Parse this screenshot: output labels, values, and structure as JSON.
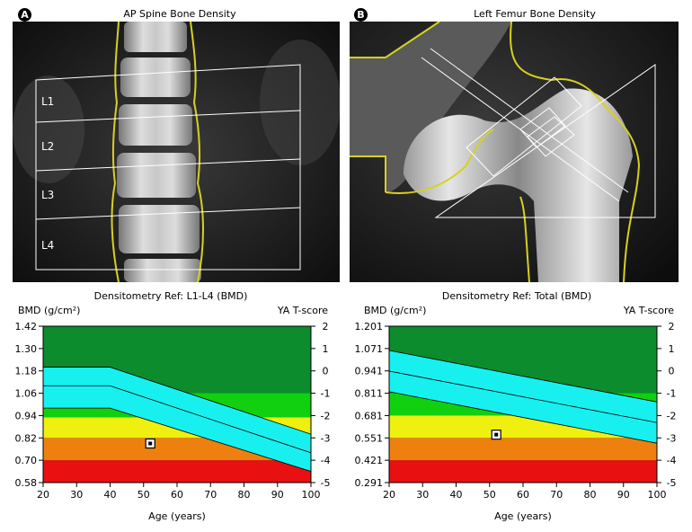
{
  "panels": [
    {
      "label": "A",
      "image_title": "AP Spine Bone Density",
      "vertebra_labels": [
        "L1",
        "L2",
        "L3",
        "L4"
      ]
    },
    {
      "label": "B",
      "image_title": "Left Femur Bone Density"
    }
  ],
  "chart_data": [
    {
      "type": "area",
      "title": "Densitometry Ref: L1-L4 (BMD)",
      "ylabel": "BMD (g/cm²)",
      "y2label": "YA T-score",
      "xlabel": "Age (years)",
      "xlim": [
        20,
        100
      ],
      "ylim": [
        0.58,
        1.42
      ],
      "y2lim": [
        -5,
        2
      ],
      "x_ticks": [
        "20",
        "30",
        "40",
        "50",
        "60",
        "70",
        "80",
        "90",
        "100"
      ],
      "y_ticks": [
        "0.58",
        "0.70",
        "0.82",
        "0.94",
        "1.06",
        "1.18",
        "1.30",
        "1.42"
      ],
      "y2_ticks": [
        "-5",
        "-4",
        "-3",
        "-2",
        "-1",
        "0",
        "1",
        "2"
      ],
      "bands": {
        "red_top": 0.7,
        "orange_top": 0.82,
        "yellow_top": 0.93,
        "green_top": 1.06,
        "lightgreen_start_x": 20,
        "lightgreen_break_x": 40
      },
      "reference_curve": {
        "x": [
          20,
          40,
          100
        ],
        "upper": [
          1.2,
          1.2,
          0.84
        ],
        "mean": [
          1.1,
          1.1,
          0.74
        ],
        "lower": [
          0.98,
          0.98,
          0.64
        ]
      },
      "patient_point": {
        "age": 52,
        "bmd": 0.79
      },
      "colors": {
        "dark_green": "#0c8c2c",
        "light_green": "#10d010",
        "yellow": "#f0f010",
        "orange": "#ee8010",
        "red": "#e81010",
        "cyan": "#18f0f0"
      }
    },
    {
      "type": "area",
      "title": "Densitometry Ref: Total (BMD)",
      "ylabel": "BMD (g/cm²)",
      "y2label": "YA T-score",
      "xlabel": "Age (years)",
      "xlim": [
        20,
        100
      ],
      "ylim": [
        0.291,
        1.201
      ],
      "y2lim": [
        -5,
        2
      ],
      "x_ticks": [
        "20",
        "30",
        "40",
        "50",
        "60",
        "70",
        "80",
        "90",
        "100"
      ],
      "y_ticks": [
        "0.291",
        "0.421",
        "0.551",
        "0.681",
        "0.811",
        "0.941",
        "1.071",
        "1.201"
      ],
      "y2_ticks": [
        "-5",
        "-4",
        "-3",
        "-2",
        "-1",
        "0",
        "1",
        "2"
      ],
      "bands": {
        "red_top": 0.421,
        "orange_top": 0.551,
        "yellow_top": 0.681,
        "green_top": 0.811
      },
      "reference_curve": {
        "x": [
          20,
          100
        ],
        "upper": [
          1.06,
          0.76
        ],
        "mean": [
          0.94,
          0.64
        ],
        "lower": [
          0.82,
          0.52
        ]
      },
      "patient_point": {
        "age": 52,
        "bmd": 0.57
      },
      "colors": {
        "dark_green": "#0c8c2c",
        "light_green": "#10d010",
        "yellow": "#f0f010",
        "orange": "#ee8010",
        "red": "#e81010",
        "cyan": "#18f0f0"
      }
    }
  ]
}
